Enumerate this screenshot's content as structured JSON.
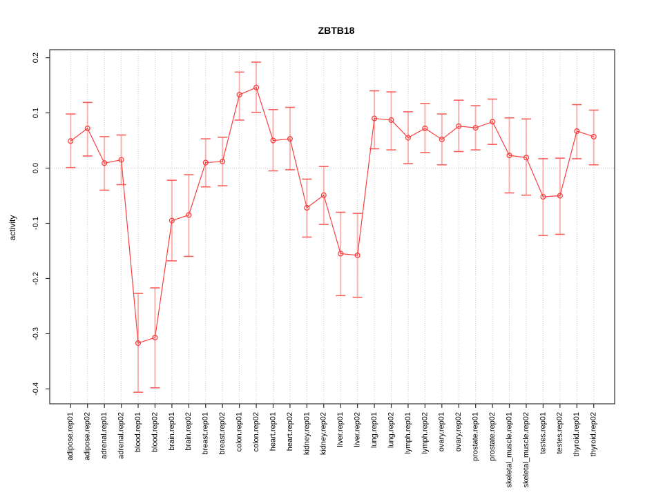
{
  "chart_data": {
    "type": "line",
    "title": "ZBTB18",
    "xlabel": "",
    "ylabel": "activity",
    "points_style": "open-circle",
    "error_bars": true,
    "legend": "none",
    "grid": "dotted vertical line at every category; dotted horizontal line at 0",
    "ylim": [
      -0.427,
      0.2145
    ],
    "yticks": [
      0.2,
      0.1,
      0.0,
      -0.1,
      -0.2,
      -0.3,
      -0.4
    ],
    "ytick_labels": [
      "0.2",
      "0.1",
      "0.0",
      "-0.1",
      "-0.2",
      "-0.3",
      "-0.4"
    ],
    "categories": [
      "adipose.rep01",
      "adipose.rep02",
      "adrenal.rep01",
      "adrenal.rep02",
      "blood.rep01",
      "blood.rep02",
      "brain.rep01",
      "brain.rep02",
      "breast.rep01",
      "breast.rep02",
      "colon.rep01",
      "colon.rep02",
      "heart.rep01",
      "heart.rep02",
      "kidney.rep01",
      "kidney.rep02",
      "liver.rep01",
      "liver.rep02",
      "lung.rep01",
      "lung.rep02",
      "lymph.rep01",
      "lymph.rep02",
      "ovary.rep01",
      "ovary.rep02",
      "prostate.rep01",
      "prostate.rep02",
      "skeletal_muscle.rep01",
      "skeletal_muscle.rep02",
      "testes.rep01",
      "testes.rep02",
      "thyroid.rep01",
      "thyroid.rep02"
    ],
    "series": [
      {
        "name": "activity",
        "values": [
          0.049,
          0.072,
          0.009,
          0.015,
          -0.317,
          -0.307,
          -0.095,
          -0.085,
          0.01,
          0.012,
          0.133,
          0.146,
          0.05,
          0.053,
          -0.072,
          -0.049,
          -0.155,
          -0.158,
          0.09,
          0.087,
          0.055,
          0.072,
          0.052,
          0.076,
          0.073,
          0.084,
          0.023,
          0.019,
          -0.052,
          -0.05,
          0.067,
          0.057
        ],
        "error_low": [
          0.001,
          0.022,
          -0.04,
          -0.03,
          -0.406,
          -0.398,
          -0.168,
          -0.16,
          -0.034,
          -0.032,
          0.087,
          0.101,
          -0.005,
          -0.003,
          -0.125,
          -0.102,
          -0.231,
          -0.234,
          0.035,
          0.033,
          0.008,
          0.028,
          0.006,
          0.03,
          0.033,
          0.043,
          -0.045,
          -0.049,
          -0.122,
          -0.12,
          0.017,
          0.006
        ],
        "error_high": [
          0.098,
          0.119,
          0.057,
          0.06,
          -0.227,
          -0.217,
          -0.022,
          -0.012,
          0.053,
          0.056,
          0.174,
          0.192,
          0.106,
          0.11,
          -0.02,
          0.003,
          -0.08,
          -0.082,
          0.14,
          0.138,
          0.102,
          0.117,
          0.098,
          0.123,
          0.113,
          0.125,
          0.091,
          0.089,
          0.017,
          0.018,
          0.115,
          0.105
        ]
      }
    ],
    "colors": {
      "line": "#f93d3d",
      "point": "#f93d3d",
      "errorbar_line": "#fba6a2",
      "errorbar_cap": "#f85e5a",
      "grid": "#c8c8c8",
      "zero_line": "#c8c8c8",
      "frame": "#2e2e2e",
      "background": "#ffffff"
    }
  }
}
